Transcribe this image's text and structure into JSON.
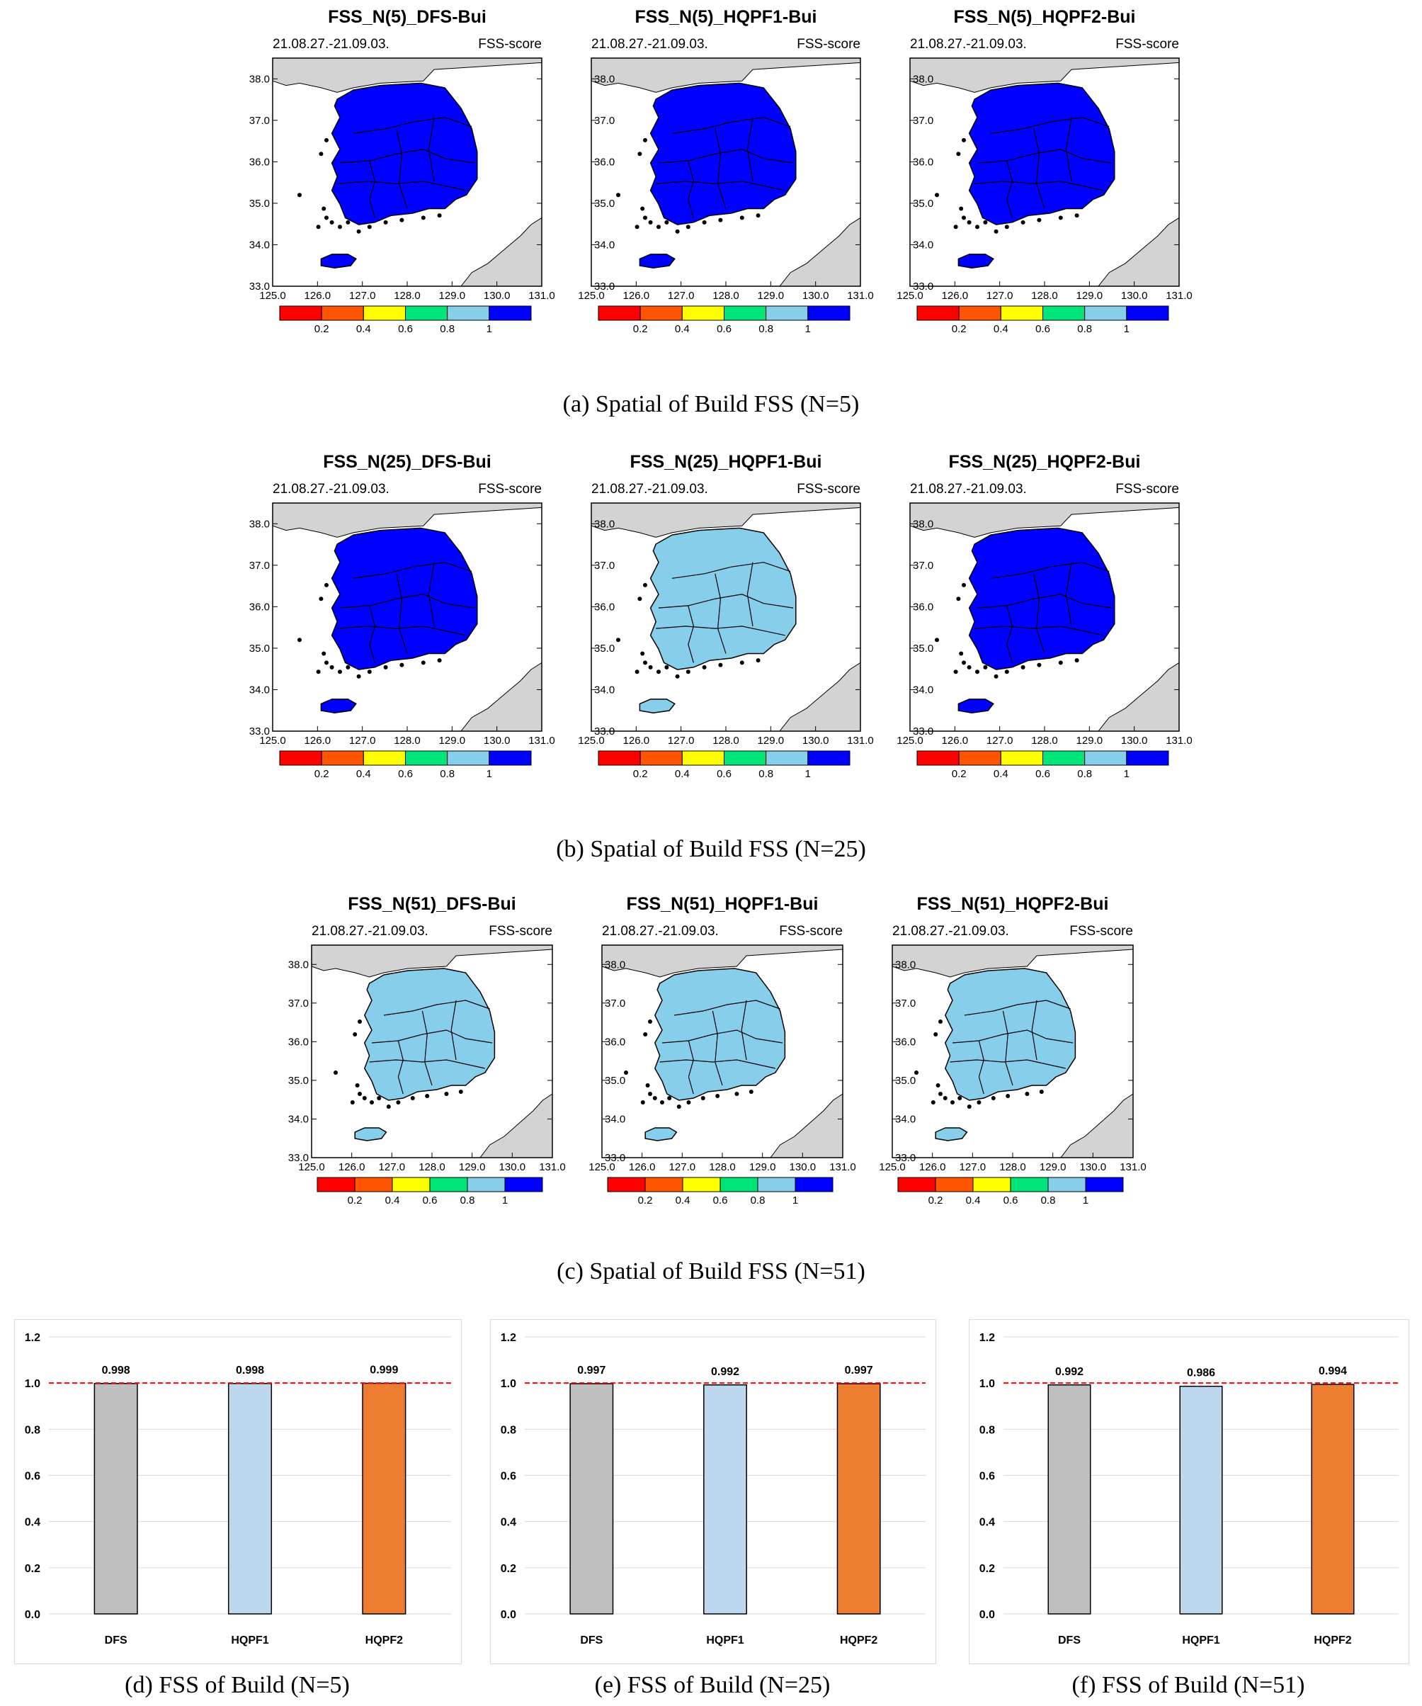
{
  "map_rows": [
    {
      "caption": "(a) Spatial of Build FSS (N=5)",
      "panels": [
        {
          "title": "FSS_N(5)_DFS-Bui",
          "date": "21.08.27.-21.09.03.",
          "score_label": "FSS-score",
          "fill": "#0000ff"
        },
        {
          "title": "FSS_N(5)_HQPF1-Bui",
          "date": "21.08.27.-21.09.03.",
          "score_label": "FSS-score",
          "fill": "#0000ff"
        },
        {
          "title": "FSS_N(5)_HQPF2-Bui",
          "date": "21.08.27.-21.09.03.",
          "score_label": "FSS-score",
          "fill": "#0000ff"
        }
      ]
    },
    {
      "caption": "(b) Spatial of Build FSS (N=25)",
      "panels": [
        {
          "title": "FSS_N(25)_DFS-Bui",
          "date": "21.08.27.-21.09.03.",
          "score_label": "FSS-score",
          "fill": "#0000ff"
        },
        {
          "title": "FSS_N(25)_HQPF1-Bui",
          "date": "21.08.27.-21.09.03.",
          "score_label": "FSS-score",
          "fill": "#87ceeb"
        },
        {
          "title": "FSS_N(25)_HQPF2-Bui",
          "date": "21.08.27.-21.09.03.",
          "score_label": "FSS-score",
          "fill": "#0000ff"
        }
      ]
    },
    {
      "caption": "(c) Spatial of Build FSS (N=51)",
      "panels": [
        {
          "title": "FSS_N(51)_DFS-Bui",
          "date": "21.08.27.-21.09.03.",
          "score_label": "FSS-score",
          "fill": "#87ceeb"
        },
        {
          "title": "FSS_N(51)_HQPF1-Bui",
          "date": "21.08.27.-21.09.03.",
          "score_label": "FSS-score",
          "fill": "#87ceeb"
        },
        {
          "title": "FSS_N(51)_HQPF2-Bui",
          "date": "21.08.27.-21.09.03.",
          "score_label": "FSS-score",
          "fill": "#87ceeb"
        }
      ]
    }
  ],
  "map_axes": {
    "lat_ticks": [
      "33.0",
      "34.0",
      "35.0",
      "36.0",
      "37.0",
      "38.0"
    ],
    "lon_ticks": [
      "125.0",
      "126.0",
      "127.0",
      "128.0",
      "129.0",
      "130.0",
      "131.0"
    ],
    "colorbar_colors": [
      "#ff0000",
      "#ff5500",
      "#ffff00",
      "#00e57a",
      "#87ceeb",
      "#0000ff"
    ],
    "colorbar_labels": [
      "0.2",
      "0.4",
      "0.6",
      "0.8",
      "1"
    ]
  },
  "chart_data": [
    {
      "type": "bar",
      "caption": "(d) FSS of Build (N=5)",
      "categories": [
        "DFS",
        "HQPF1",
        "HQPF2"
      ],
      "values": [
        0.998,
        0.998,
        0.999
      ],
      "value_labels": [
        "0.998",
        "0.998",
        "0.999"
      ],
      "colors": [
        "#bfbfbf",
        "#bdd7ee",
        "#ed7d31"
      ],
      "ylim": [
        0,
        1.2
      ],
      "yticks": [
        "0.0",
        "0.2",
        "0.4",
        "0.6",
        "0.8",
        "1.0",
        "1.2"
      ],
      "reference_line": 1.0,
      "reference_color": "#ff0000",
      "grid": true
    },
    {
      "type": "bar",
      "caption": "(e) FSS of Build (N=25)",
      "categories": [
        "DFS",
        "HQPF1",
        "HQPF2"
      ],
      "values": [
        0.997,
        0.992,
        0.997
      ],
      "value_labels": [
        "0.997",
        "0.992",
        "0.997"
      ],
      "colors": [
        "#bfbfbf",
        "#bdd7ee",
        "#ed7d31"
      ],
      "ylim": [
        0,
        1.2
      ],
      "yticks": [
        "0.0",
        "0.2",
        "0.4",
        "0.6",
        "0.8",
        "1.0",
        "1.2"
      ],
      "reference_line": 1.0,
      "reference_color": "#ff0000",
      "grid": true
    },
    {
      "type": "bar",
      "caption": "(f) FSS of Build (N=51)",
      "categories": [
        "DFS",
        "HQPF1",
        "HQPF2"
      ],
      "values": [
        0.992,
        0.986,
        0.994
      ],
      "value_labels": [
        "0.992",
        "0.986",
        "0.994"
      ],
      "colors": [
        "#bfbfbf",
        "#bdd7ee",
        "#ed7d31"
      ],
      "ylim": [
        0,
        1.2
      ],
      "yticks": [
        "0.0",
        "0.2",
        "0.4",
        "0.6",
        "0.8",
        "1.0",
        "1.2"
      ],
      "reference_line": 1.0,
      "reference_color": "#ff0000",
      "grid": true
    }
  ]
}
